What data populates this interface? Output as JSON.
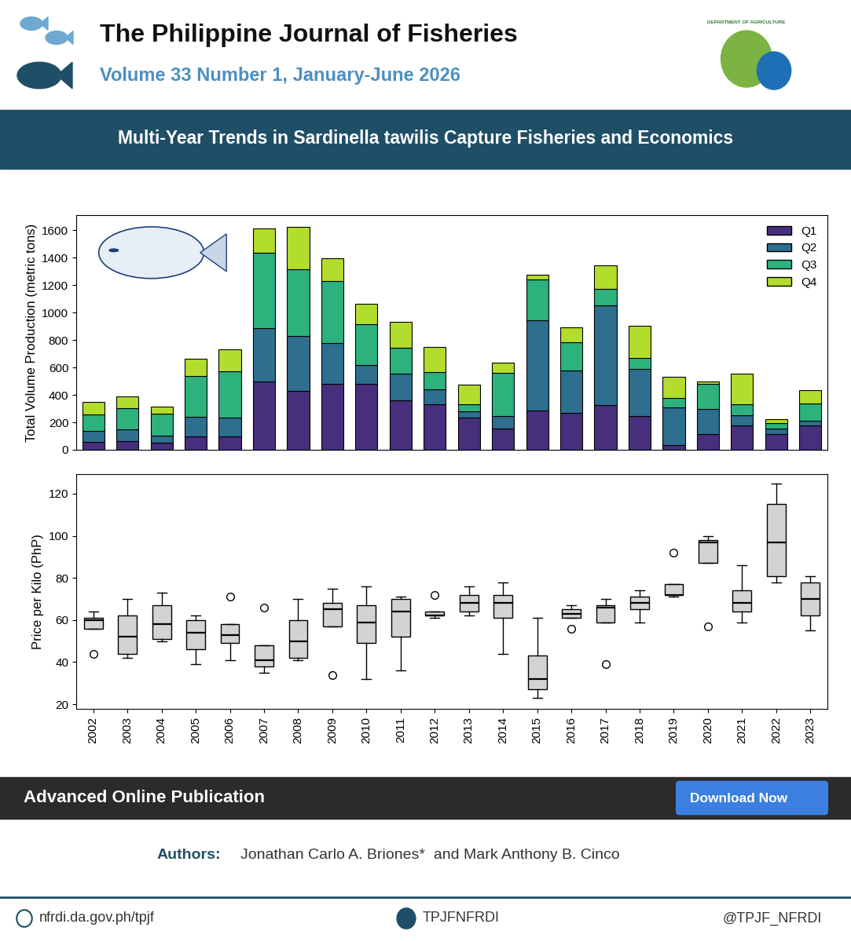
{
  "header": {
    "title": "The Philippine Journal of Fisheries",
    "subtitle": "Volume 33 Number 1, January-June 2026",
    "logo_text": "DEPARTMENT OF AGRICULTURE"
  },
  "banner": "Multi-Year Trends in Sardinella tawilis Capture Fisheries and Economics",
  "chart_data": [
    {
      "type": "bar",
      "stacked": true,
      "legend": "upper right",
      "tick_labels": "y",
      "y_label": "Total Volume Production (metric tons)",
      "categories": [
        "2002",
        "2003",
        "2004",
        "2005",
        "2006",
        "2007",
        "2008",
        "2009",
        "2010",
        "2011",
        "2012",
        "2013",
        "2014",
        "2015",
        "2016",
        "2017",
        "2018",
        "2019",
        "2020",
        "2021",
        "2022",
        "2023"
      ],
      "series": [
        {
          "name": "Q1",
          "color": "#472f7d",
          "values": [
            60,
            65,
            50,
            100,
            95,
            495,
            430,
            480,
            480,
            360,
            330,
            235,
            155,
            285,
            270,
            325,
            245,
            35,
            115,
            180,
            115,
            180
          ]
        },
        {
          "name": "Q2",
          "color": "#2e6e8e",
          "values": [
            75,
            85,
            55,
            140,
            140,
            390,
            400,
            295,
            140,
            195,
            110,
            45,
            90,
            660,
            305,
            725,
            345,
            275,
            185,
            70,
            40,
            30
          ]
        },
        {
          "name": "Q3",
          "color": "#2db27d",
          "values": [
            120,
            155,
            160,
            295,
            335,
            550,
            485,
            455,
            295,
            190,
            125,
            50,
            315,
            295,
            210,
            125,
            80,
            70,
            180,
            80,
            40,
            125
          ]
        },
        {
          "name": "Q4",
          "color": "#b2dd2c",
          "values": [
            95,
            85,
            50,
            130,
            160,
            180,
            310,
            165,
            150,
            185,
            185,
            145,
            75,
            35,
            105,
            170,
            235,
            150,
            15,
            225,
            30,
            100
          ]
        }
      ],
      "ylim": [
        0,
        1710
      ],
      "yticks": [
        0,
        200,
        400,
        600,
        800,
        1000,
        1200,
        1400,
        1600
      ]
    },
    {
      "type": "box",
      "color": "#d3d3d3",
      "y_label": "Price per Kilo (PhP)",
      "categories": [
        "2002",
        "2003",
        "2004",
        "2005",
        "2006",
        "2007",
        "2008",
        "2009",
        "2010",
        "2011",
        "2012",
        "2013",
        "2014",
        "2015",
        "2016",
        "2017",
        "2018",
        "2019",
        "2020",
        "2021",
        "2022",
        "2023"
      ],
      "boxes": [
        {
          "whislo": 56,
          "q1": 56,
          "med": 60,
          "q3": 61,
          "whishi": 64,
          "fliers": [
            44
          ]
        },
        {
          "whislo": 42,
          "q1": 44,
          "med": 52,
          "q3": 62,
          "whishi": 70,
          "fliers": []
        },
        {
          "whislo": 50,
          "q1": 51,
          "med": 58,
          "q3": 67,
          "whishi": 73,
          "fliers": []
        },
        {
          "whislo": 39,
          "q1": 46,
          "med": 54,
          "q3": 60,
          "whishi": 62,
          "fliers": []
        },
        {
          "whislo": 41,
          "q1": 49,
          "med": 53,
          "q3": 58,
          "whishi": 58,
          "fliers": [
            71
          ]
        },
        {
          "whislo": 35,
          "q1": 38,
          "med": 41,
          "q3": 48,
          "whishi": 48,
          "fliers": [
            66
          ]
        },
        {
          "whislo": 41,
          "q1": 42,
          "med": 50,
          "q3": 60,
          "whishi": 70,
          "fliers": []
        },
        {
          "whislo": 57,
          "q1": 57,
          "med": 65,
          "q3": 68,
          "whishi": 75,
          "fliers": [
            34
          ]
        },
        {
          "whislo": 32,
          "q1": 49,
          "med": 59,
          "q3": 67,
          "whishi": 76,
          "fliers": []
        },
        {
          "whislo": 36,
          "q1": 52,
          "med": 64,
          "q3": 70,
          "whishi": 71,
          "fliers": []
        },
        {
          "whislo": 61,
          "q1": 62,
          "med": 62,
          "q3": 64,
          "whishi": 64,
          "fliers": [
            72
          ]
        },
        {
          "whislo": 62,
          "q1": 64,
          "med": 68,
          "q3": 72,
          "whishi": 76,
          "fliers": []
        },
        {
          "whislo": 44,
          "q1": 61,
          "med": 68,
          "q3": 72,
          "whishi": 78,
          "fliers": []
        },
        {
          "whislo": 23,
          "q1": 27,
          "med": 32,
          "q3": 43,
          "whishi": 61,
          "fliers": []
        },
        {
          "whislo": 61,
          "q1": 61,
          "med": 63,
          "q3": 65,
          "whishi": 67,
          "fliers": [
            56
          ]
        },
        {
          "whislo": 59,
          "q1": 59,
          "med": 66,
          "q3": 67,
          "whishi": 70,
          "fliers": [
            39
          ]
        },
        {
          "whislo": 59,
          "q1": 65,
          "med": 68,
          "q3": 71,
          "whishi": 74,
          "fliers": []
        },
        {
          "whislo": 71,
          "q1": 72,
          "med": 72,
          "q3": 77,
          "whishi": 77,
          "fliers": [
            92
          ]
        },
        {
          "whislo": 87,
          "q1": 87,
          "med": 97,
          "q3": 98,
          "whishi": 100,
          "fliers": [
            57
          ]
        },
        {
          "whislo": 59,
          "q1": 64,
          "med": 68,
          "q3": 74,
          "whishi": 86,
          "fliers": []
        },
        {
          "whislo": 78,
          "q1": 81,
          "med": 97,
          "q3": 115,
          "whishi": 125,
          "fliers": []
        },
        {
          "whislo": 55,
          "q1": 62,
          "med": 70,
          "q3": 78,
          "whishi": 81,
          "fliers": []
        }
      ],
      "ylim": [
        17.8,
        129.3
      ],
      "yticks": [
        20,
        40,
        60,
        80,
        100,
        120
      ]
    }
  ],
  "footer_bar": {
    "text": "Advanced Online Publication",
    "button": "Download Now"
  },
  "authors": {
    "label": "Authors:",
    "names": "Jonathan Carlo A. Briones*  and Mark Anthony B. Cinco"
  },
  "links": {
    "website": "nfrdi.da.gov.ph/tpjf",
    "facebook": "TPJFNFRDI",
    "x": "@TPJF_NFRDI"
  }
}
